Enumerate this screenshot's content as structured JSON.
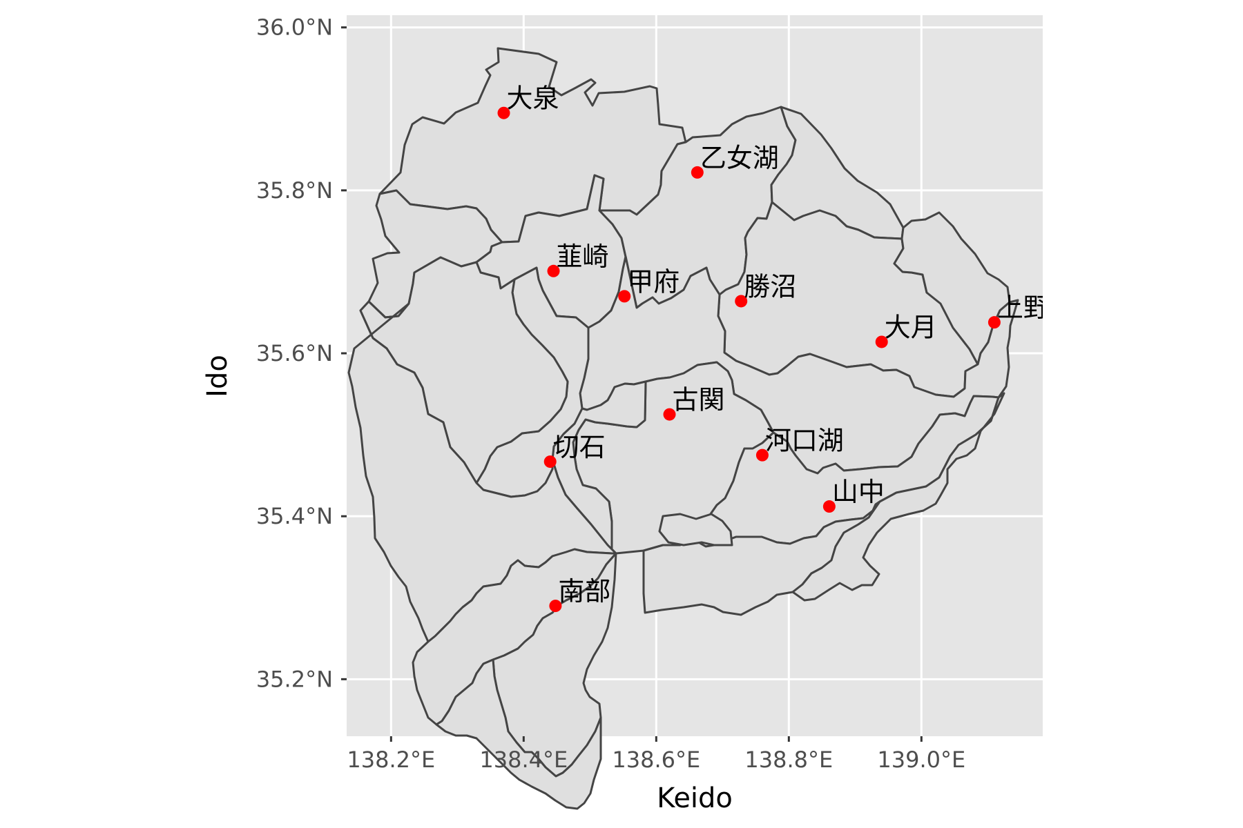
{
  "chart_data": {
    "type": "scatter",
    "xlabel": "Keido",
    "ylabel": "Ido",
    "xlim": [
      138.133,
      139.183
    ],
    "ylim": [
      35.13,
      36.015
    ],
    "grid": true,
    "x_ticks": [
      {
        "value": 138.2,
        "label": "138.2°E"
      },
      {
        "value": 138.4,
        "label": "138.4°E"
      },
      {
        "value": 138.6,
        "label": "138.6°E"
      },
      {
        "value": 138.8,
        "label": "138.8°E"
      },
      {
        "value": 139.0,
        "label": "139.0°E"
      }
    ],
    "y_ticks": [
      {
        "value": 35.2,
        "label": "35.2°N"
      },
      {
        "value": 35.4,
        "label": "35.4°N"
      },
      {
        "value": 35.6,
        "label": "35.6°N"
      },
      {
        "value": 35.8,
        "label": "35.8°N"
      },
      {
        "value": 36.0,
        "label": "36.0°N"
      }
    ],
    "point_color": "#ff0000",
    "panel_color": "#e5e5e5",
    "region_fill": "#dfdfdf",
    "region_stroke": "#444444",
    "points": [
      {
        "name": "大泉",
        "x": 138.37,
        "y": 35.895
      },
      {
        "name": "乙女湖",
        "x": 138.662,
        "y": 35.822
      },
      {
        "name": "韮崎",
        "x": 138.445,
        "y": 35.701
      },
      {
        "name": "甲府",
        "x": 138.552,
        "y": 35.67
      },
      {
        "name": "勝沼",
        "x": 138.728,
        "y": 35.664
      },
      {
        "name": "大月",
        "x": 138.94,
        "y": 35.614
      },
      {
        "name": "上野",
        "x": 139.11,
        "y": 35.638
      },
      {
        "name": "古関",
        "x": 138.62,
        "y": 35.525
      },
      {
        "name": "切石",
        "x": 138.44,
        "y": 35.467
      },
      {
        "name": "河口湖",
        "x": 138.76,
        "y": 35.475
      },
      {
        "name": "山中",
        "x": 138.861,
        "y": 35.412
      },
      {
        "name": "南部",
        "x": 138.448,
        "y": 35.29
      }
    ]
  }
}
